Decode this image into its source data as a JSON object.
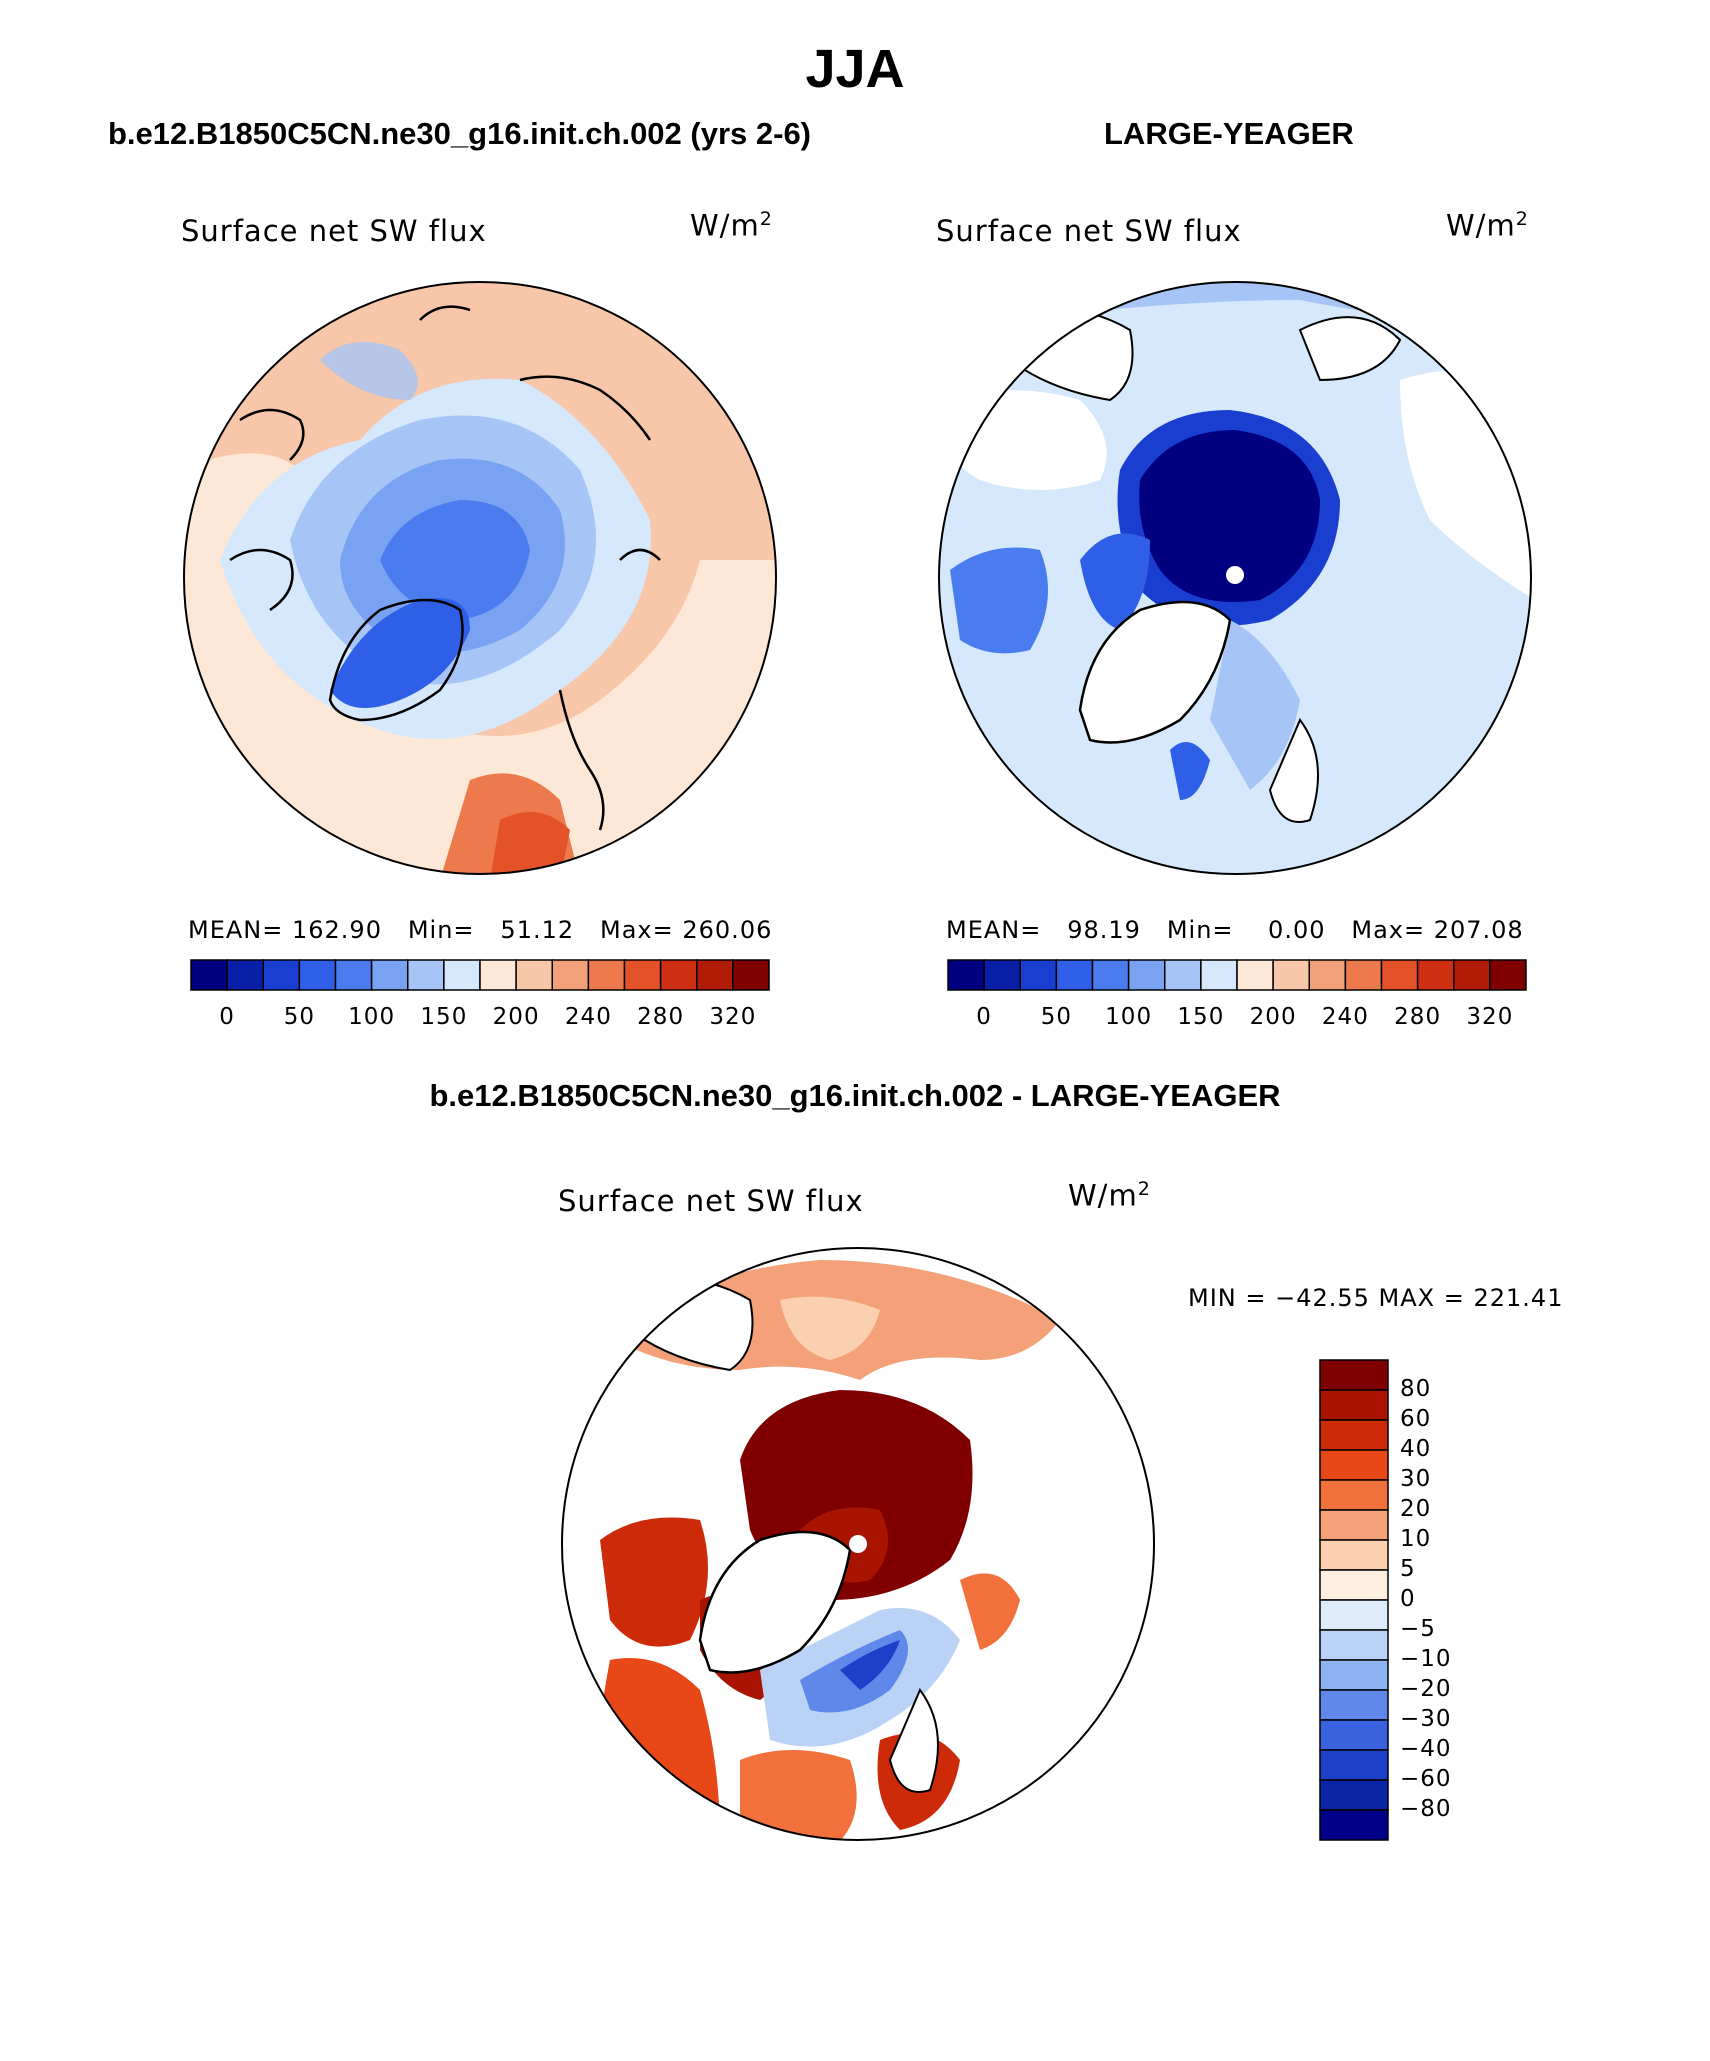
{
  "page": {
    "title": "JJA",
    "left_title": "b.e12.B1850C5CN.ne30_g16.init.ch.002 (yrs 2-6)",
    "right_title": "LARGE-YEAGER",
    "diff_title": "b.e12.B1850C5CN.ne30_g16.init.ch.002 - LARGE-YEAGER"
  },
  "panels": {
    "left": {
      "variable": "Surface net SW flux",
      "units": "W/m",
      "units_exp": "2",
      "stats": "MEAN= 162.90   Min=   51.12   Max= 260.06",
      "colorbar_ticks": [
        "0",
        "50",
        "100",
        "150",
        "200",
        "240",
        "280",
        "320"
      ]
    },
    "right": {
      "variable": "Surface net SW flux",
      "units": "W/m",
      "units_exp": "2",
      "stats": "MEAN=   98.19   Min=    0.00   Max= 207.08",
      "colorbar_ticks": [
        "0",
        "50",
        "100",
        "150",
        "200",
        "240",
        "280",
        "320"
      ]
    },
    "diff": {
      "variable": "Surface net SW flux",
      "units": "W/m",
      "units_exp": "2",
      "stats": "MIN = −42.55 MAX = 221.41",
      "colorbar_ticks": [
        "80",
        "60",
        "40",
        "30",
        "20",
        "10",
        "5",
        "0",
        "−5",
        "−10",
        "−20",
        "−30",
        "−40",
        "−60",
        "−80"
      ]
    }
  },
  "colors": {
    "abs_scale": [
      "#000080",
      "#0a1fa8",
      "#1a3fd0",
      "#2e5fe6",
      "#4a7cf0",
      "#7aa2f2",
      "#a6c4f5",
      "#d6e8fb",
      "#fde8d8",
      "#f8c6a8",
      "#f2a07a",
      "#ec7a4c",
      "#e4522a",
      "#cf3014",
      "#b01c08",
      "#800000"
    ],
    "diff_scale": [
      "#800000",
      "#a81400",
      "#cc2a08",
      "#e84818",
      "#f2703c",
      "#f4a078",
      "#fbd0b0",
      "#fdeee0",
      "#deebfb",
      "#b9d2f5",
      "#8fb2f0",
      "#5f88ea",
      "#3a62e0",
      "#1c40c8",
      "#0c24a8",
      "#000088"
    ],
    "land_outline": "#000000"
  }
}
